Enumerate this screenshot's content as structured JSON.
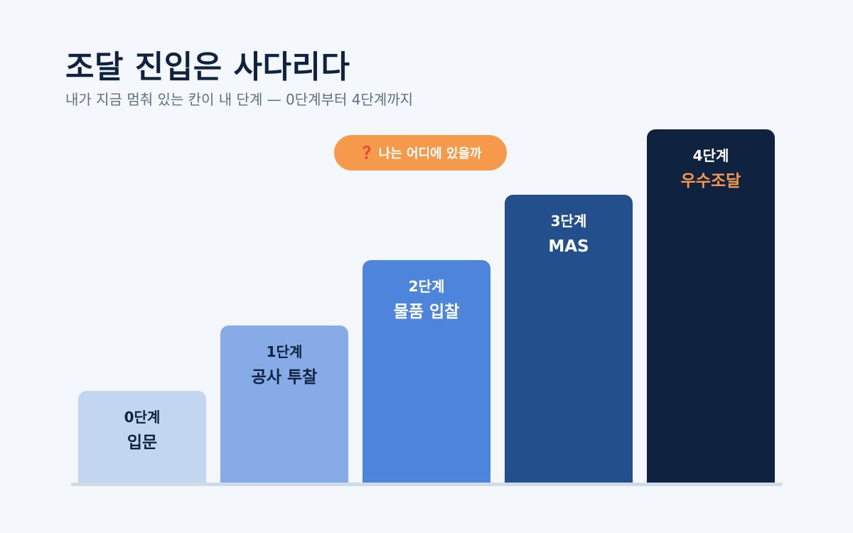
{
  "header": {
    "title": "조달 진입은 사다리다",
    "subtitle": "내가 지금 멈춰 있는 칸이 내 단계 — 0단계부터 4단계까지"
  },
  "callout": {
    "icon": "question-mark-icon",
    "icon_glyph": "❓",
    "text": "나는 어디에 있을까",
    "color": "#f5994a"
  },
  "steps": [
    {
      "number_label": "0단계",
      "name": "입문",
      "level": 0,
      "bg_color": "#c3d6f0",
      "text_color": "#0f2240",
      "name_color": "#0f2240"
    },
    {
      "number_label": "1단계",
      "name": "공사 투찰",
      "level": 1,
      "bg_color": "#86abe6",
      "text_color": "#0f2240",
      "name_color": "#0f2240"
    },
    {
      "number_label": "2단계",
      "name": "물품 입찰",
      "level": 2,
      "bg_color": "#4d85dc",
      "text_color": "#ffffff",
      "name_color": "#ffffff"
    },
    {
      "number_label": "3단계",
      "name": "MAS",
      "level": 3,
      "bg_color": "#23508d",
      "text_color": "#ffffff",
      "name_color": "#ffffff"
    },
    {
      "number_label": "4단계",
      "name": "우수조달",
      "level": 4,
      "bg_color": "#0f2240",
      "text_color": "#ffffff",
      "name_color": "#f5994a"
    }
  ]
}
